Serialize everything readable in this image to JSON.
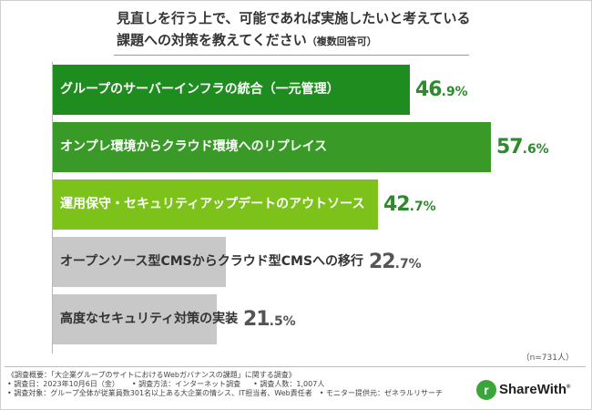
{
  "chart_data": {
    "type": "bar",
    "orientation": "horizontal",
    "title_line1": "見直しを行う上で、可能であれば実施したいと考えている",
    "title_line2": "課題への対策を教えてください",
    "title_note": "（複数回答可）",
    "categories": [
      "グループのサーバーインフラの統合（一元管理）",
      "オンプレ環境からクラウド環境へのリプレイス",
      "運用保守・セキュリティアップデートのアウトソース",
      "オープンソース型CMSからクラウド型CMSへの移行",
      "高度なセキュリティ対策の実装"
    ],
    "values": [
      46.9,
      57.6,
      42.7,
      22.7,
      21.5
    ],
    "value_int_labels": [
      "46",
      "57",
      "42",
      "22",
      "21"
    ],
    "value_dec_labels": [
      ".9%",
      ".6%",
      ".7%",
      ".7%",
      ".5%"
    ],
    "bar_colors": [
      "#1e8c1e",
      "#3a9a28",
      "#7cc21a",
      "#c8c8c8",
      "#c8c8c8"
    ],
    "label_colors": [
      "#ffffff",
      "#ffffff",
      "#ffffff",
      "#333333",
      "#333333"
    ],
    "value_colors": [
      "#2d8a2d",
      "#2d8a2d",
      "#2d8a2d",
      "#555555",
      "#555555"
    ],
    "xlim": [
      0,
      100
    ],
    "grid": false,
    "sample_size": "（n=731人）"
  },
  "footnotes": {
    "line1": "《調査概要：「大企業グループのサイトにおけるWebガバナンスの課題」に関する調査》",
    "line2": [
      "• 調査日：2023年10月6日（金）",
      "• 調査方法：インターネット調査",
      "• 調査人数：1,007人"
    ],
    "line3": "• 調査対象：グループ全体が従業員数301名以上ある大企業の情シス、IT担当者、Web責任者　• モニター提供元：ゼネラルリサーチ"
  },
  "logo": {
    "text": "ShareWith",
    "mark": "r",
    "brand_color": "#3aa63a"
  }
}
